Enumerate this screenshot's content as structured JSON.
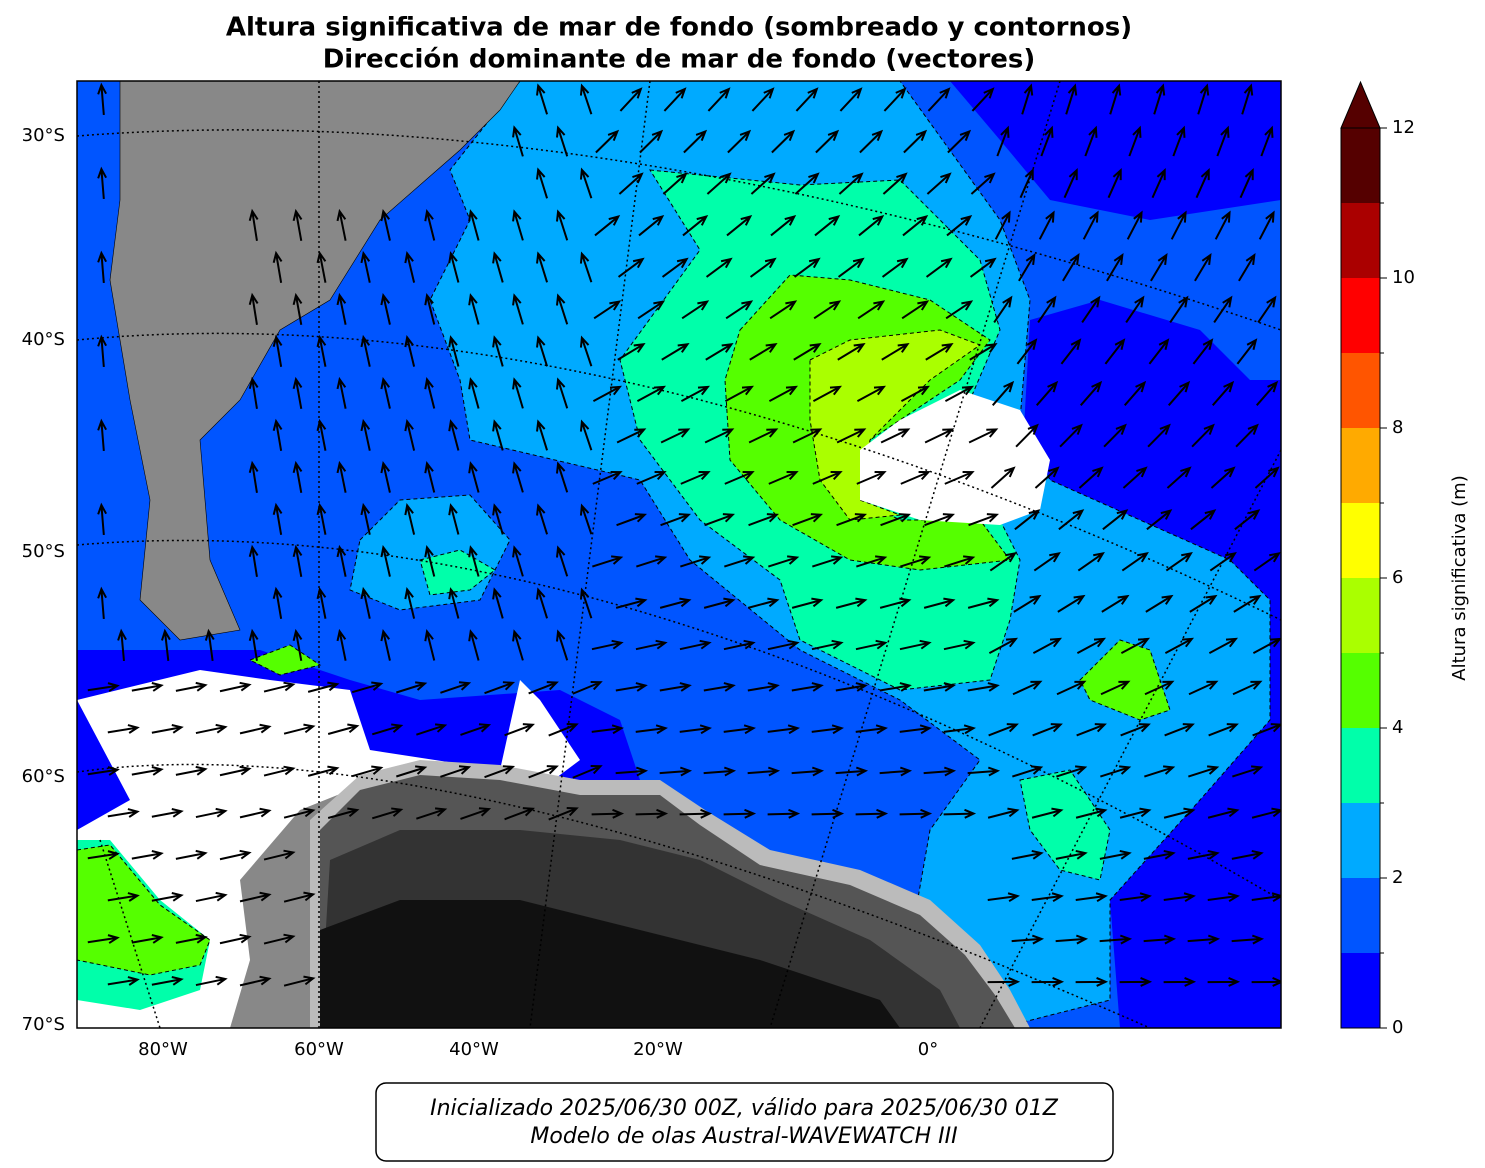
{
  "title": [
    "Altura significativa de mar de fondo (sombreado y contornos)",
    "Dirección dominante de mar de fondo (vectores)"
  ],
  "map": {
    "lat_labels": [
      "30°S",
      "40°S",
      "50°S",
      "60°S",
      "70°S"
    ],
    "lon_labels": [
      "80°W",
      "60°W",
      "40°W",
      "20°W",
      "0°"
    ]
  },
  "colorbar": {
    "label": "Altura significativa (m)",
    "bounds": [
      0,
      1,
      2,
      3,
      4,
      5,
      6,
      7,
      8,
      9,
      10,
      11,
      12
    ],
    "colors": [
      "#0000ff",
      "#0055ff",
      "#00aaff",
      "#00ffaa",
      "#55ff00",
      "#aaff00",
      "#ffff00",
      "#ffaa00",
      "#ff5500",
      "#ff0000",
      "#aa0000",
      "#550000"
    ],
    "extend_color": "#550000",
    "lim": [
      0,
      12
    ],
    "ticks": [
      0,
      2,
      4,
      6,
      8,
      10,
      12
    ]
  },
  "footer": [
    "Inicializado 2025/06/30 00Z, válido para 2025/06/30 01Z",
    "Modelo de olas Austral-WAVEWATCH III"
  ]
}
